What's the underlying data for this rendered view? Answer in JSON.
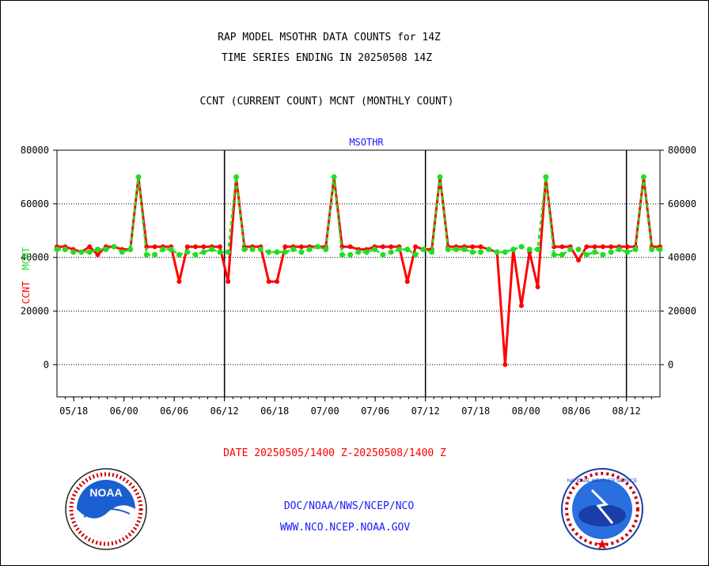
{
  "header": {
    "title_line1": "RAP MODEL MSOTHR DATA COUNTS for 14Z",
    "title_line2": "TIME SERIES ENDING IN 20250508 14Z",
    "subtitle": "CCNT (CURRENT COUNT) MCNT (MONTHLY COUNT)"
  },
  "footer": {
    "date_range": "DATE 20250505/1400 Z-20250508/1400 Z",
    "line1": "DOC/NOAA/NWS/NCEP/NCO",
    "line2": "WWW.NCO.NCEP.NOAA.GOV"
  },
  "logos": {
    "left": {
      "name": "noaa-logo",
      "text": "NOAA"
    },
    "right": {
      "name": "nws-logo",
      "text": "NATIONAL WEATHER SERVICE"
    }
  },
  "colors": {
    "ccnt": "#ff0000",
    "mcnt": "#22dd22",
    "text": "#000000",
    "label_blue": "#1a1aff"
  },
  "chart_data": {
    "type": "line",
    "title": "MSOTHR",
    "ylabel_ccnt": "CCNT",
    "ylabel_mcnt": "MCNT",
    "ylim": [
      -12000,
      80000
    ],
    "yticks": [
      0,
      20000,
      40000,
      60000,
      80000
    ],
    "xlim": [
      0,
      72
    ],
    "xticks": [
      {
        "x": 2,
        "label": "05/18"
      },
      {
        "x": 8,
        "label": "06/00"
      },
      {
        "x": 14,
        "label": "06/06"
      },
      {
        "x": 20,
        "label": "06/12"
      },
      {
        "x": 26,
        "label": "06/18"
      },
      {
        "x": 32,
        "label": "07/00"
      },
      {
        "x": 38,
        "label": "07/06"
      },
      {
        "x": 44,
        "label": "07/12"
      },
      {
        "x": 50,
        "label": "07/18"
      },
      {
        "x": 56,
        "label": "08/00"
      },
      {
        "x": 62,
        "label": "08/06"
      },
      {
        "x": 68,
        "label": "08/12"
      }
    ],
    "vlines": [
      20,
      44,
      68
    ],
    "series": [
      {
        "name": "CCNT",
        "color": "#ff0000",
        "values": [
          44000,
          44000,
          43000,
          42000,
          44000,
          41000,
          44000,
          44000,
          43000,
          43000,
          70000,
          44000,
          44000,
          44000,
          44000,
          31000,
          44000,
          44000,
          44000,
          44000,
          44000,
          31000,
          70000,
          44000,
          44000,
          44000,
          31000,
          31000,
          44000,
          44000,
          44000,
          44000,
          44000,
          44000,
          70000,
          44000,
          44000,
          43000,
          43000,
          44000,
          44000,
          44000,
          44000,
          31000,
          44000,
          43000,
          43000,
          70000,
          44000,
          44000,
          44000,
          44000,
          44000,
          43000,
          42000,
          0,
          43000,
          22000,
          42000,
          29000,
          70000,
          44000,
          44000,
          44000,
          39000,
          44000,
          44000,
          44000,
          44000,
          44000,
          44000,
          44000,
          70000,
          44000,
          44000
        ]
      },
      {
        "name": "MCNT",
        "color": "#22dd22",
        "values": [
          43000,
          43000,
          42000,
          42000,
          42000,
          43000,
          43000,
          44000,
          42000,
          43000,
          70000,
          41000,
          41000,
          43000,
          43000,
          41000,
          42000,
          41000,
          42000,
          43000,
          42000,
          42000,
          70000,
          43000,
          43000,
          43000,
          42000,
          42000,
          42000,
          43000,
          42000,
          43000,
          44000,
          43000,
          70000,
          41000,
          41000,
          42000,
          42000,
          43000,
          41000,
          42000,
          43000,
          43000,
          41000,
          43000,
          42000,
          70000,
          43000,
          43000,
          43000,
          42000,
          42000,
          43000,
          42000,
          42000,
          43000,
          44000,
          43000,
          43000,
          70000,
          41000,
          41000,
          43000,
          43000,
          41000,
          42000,
          41000,
          42000,
          43000,
          42000,
          43000,
          70000,
          43000,
          43000
        ]
      }
    ]
  }
}
